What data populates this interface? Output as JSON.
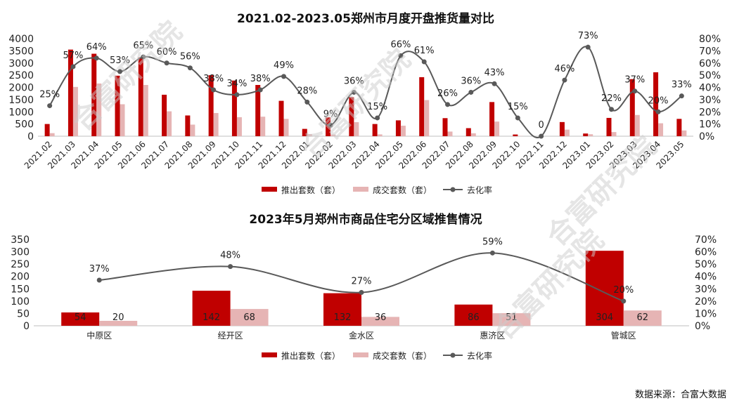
{
  "colors": {
    "launched": "#c00000",
    "sold": "#e6b4b4",
    "rate": "#595959",
    "axis": "#bfbfbf"
  },
  "legend": {
    "launched": "推出套数（套）",
    "sold": "成交套数（套）",
    "rate": "去化率"
  },
  "watermark": "合富研究院",
  "source_note": "数据来源：合富大数据",
  "chart_data": [
    {
      "type": "bar",
      "title": "2021.02-2023.05郑州市月度开盘推货量对比",
      "categories": [
        "2021.02",
        "2021.03",
        "2021.04",
        "2021.05",
        "2021.06",
        "2021.07",
        "2021.08",
        "2021.09",
        "2021.10",
        "2021.11",
        "2021.12",
        "2022.01",
        "2022.02",
        "2022.03",
        "2022.04",
        "2022.05",
        "2022.06",
        "2022.07",
        "2022.08",
        "2022.09",
        "2022.10",
        "2022.11",
        "2022.12",
        "2023.01",
        "2023.02",
        "2023.03",
        "2023.04",
        "2023.05"
      ],
      "series": [
        {
          "name": "推出套数（套）",
          "kind": "bar",
          "axis": "left",
          "values": [
            500,
            3550,
            3380,
            2480,
            3230,
            1700,
            850,
            2500,
            2280,
            2100,
            1450,
            300,
            770,
            1600,
            500,
            650,
            2420,
            740,
            330,
            1400,
            70,
            0,
            580,
            110,
            750,
            2340,
            2620,
            710
          ]
        },
        {
          "name": "成交套数（套）",
          "kind": "bar",
          "axis": "left",
          "values": [
            125,
            2020,
            2160,
            1310,
            2100,
            1020,
            475,
            950,
            780,
            800,
            710,
            85,
            70,
            575,
            75,
            430,
            1480,
            190,
            120,
            600,
            10,
            0,
            270,
            80,
            170,
            870,
            530,
            235
          ]
        },
        {
          "name": "去化率",
          "kind": "line",
          "axis": "right",
          "values": [
            25,
            57,
            64,
            53,
            65,
            60,
            56,
            38,
            34,
            38,
            49,
            28,
            9,
            36,
            15,
            66,
            61,
            26,
            36,
            43,
            15,
            0,
            46,
            73,
            22,
            37,
            20,
            33
          ],
          "labels": [
            "25%",
            "57%",
            "64%",
            "53%",
            "65%",
            "60%",
            "56%",
            "38%",
            "34%",
            "38%",
            "49%",
            "28%",
            "9%",
            "36%",
            "15%",
            "66%",
            "61%",
            "26%",
            "36%",
            "43%",
            "15%",
            "0",
            "46%",
            "73%",
            "22%",
            "37%",
            "20%",
            "33%"
          ]
        }
      ],
      "ylim": [
        0,
        4000
      ],
      "yticks": [
        "0",
        "500",
        "1000",
        "1500",
        "2000",
        "2500",
        "3000",
        "3500",
        "4000"
      ],
      "y2lim": [
        0,
        80
      ],
      "y2ticks": [
        "0%",
        "10%",
        "20%",
        "30%",
        "40%",
        "50%",
        "60%",
        "70%",
        "80%"
      ],
      "legend_position": "bottom"
    },
    {
      "type": "bar",
      "title": "2023年5月郑州市商品住宅分区域推售情况",
      "categories": [
        "中原区",
        "经开区",
        "金水区",
        "惠济区",
        "管城区"
      ],
      "series": [
        {
          "name": "推出套数（套）",
          "kind": "bar",
          "axis": "left",
          "values": [
            54,
            142,
            132,
            86,
            304
          ],
          "labels": [
            "54",
            "142",
            "132",
            "86",
            "304"
          ]
        },
        {
          "name": "成交套数（套）",
          "kind": "bar",
          "axis": "left",
          "values": [
            20,
            68,
            36,
            51,
            62
          ],
          "labels": [
            "20",
            "68",
            "36",
            "51",
            "62"
          ]
        },
        {
          "name": "去化率",
          "kind": "line",
          "axis": "right",
          "values": [
            37,
            48,
            27,
            59,
            20
          ],
          "labels": [
            "37%",
            "48%",
            "27%",
            "59%",
            "20%"
          ]
        }
      ],
      "ylim": [
        0,
        350
      ],
      "yticks": [
        "0",
        "50",
        "100",
        "150",
        "200",
        "250",
        "300",
        "350"
      ],
      "y2lim": [
        0,
        70
      ],
      "y2ticks": [
        "0%",
        "10%",
        "20%",
        "30%",
        "40%",
        "50%",
        "60%",
        "70%"
      ],
      "legend_position": "bottom"
    }
  ]
}
